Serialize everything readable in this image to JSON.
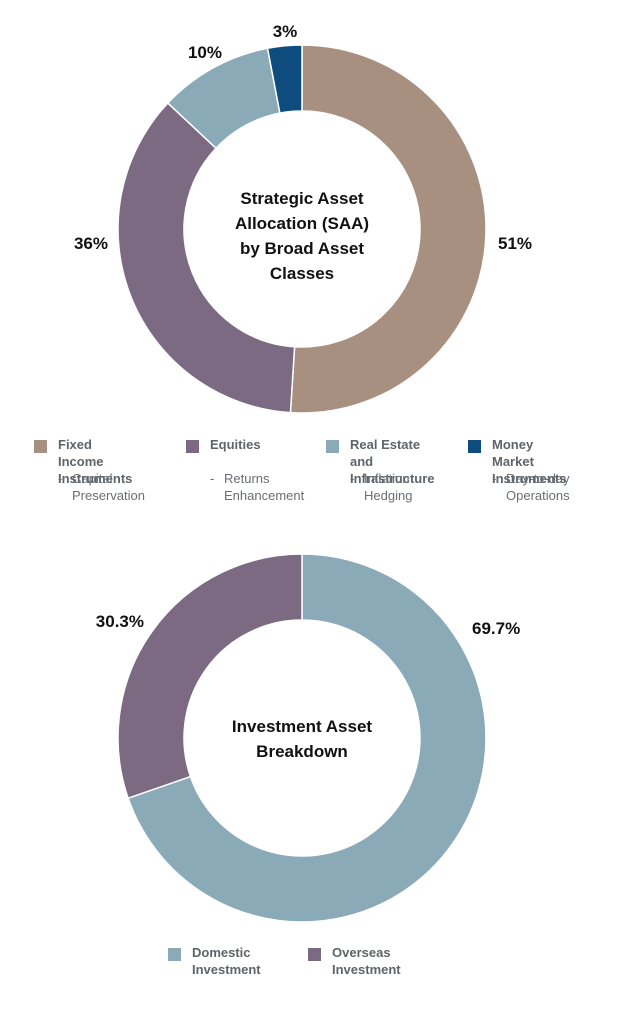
{
  "colors": {
    "fixed_income": "#a89080",
    "equities": "#7b6a82",
    "real_estate": "#8aaab7",
    "money_market": "#0e4c7d",
    "domestic": "#8aaab7",
    "overseas": "#7b6a82"
  },
  "chart_data": [
    {
      "type": "pie",
      "style": "donut",
      "title": "Strategic Asset Allocation (SAA) by Broad Asset Classes",
      "title_lines": [
        "Strategic Asset",
        "Allocation (SAA)",
        "by Broad Asset",
        "Classes"
      ],
      "slices": [
        {
          "label": "Fixed Income Instruments",
          "value": 51,
          "display": "51%",
          "color": "#a89080",
          "description": "Capital Preservation"
        },
        {
          "label": "Equities",
          "value": 36,
          "display": "36%",
          "color": "#7b6a82",
          "description": "Returns Enhancement"
        },
        {
          "label": "Real Estate and Infrastructure",
          "value": 10,
          "display": "10%",
          "color": "#8aaab7",
          "description": "Inflation Hedging"
        },
        {
          "label": "Money Market Instruments",
          "value": 3,
          "display": "3%",
          "color": "#0e4c7d",
          "description": "Day-to-day Operations"
        }
      ],
      "legend_position": "bottom"
    },
    {
      "type": "pie",
      "style": "donut",
      "title": "Investment Asset Breakdown",
      "title_lines": [
        "Investment Asset",
        "Breakdown"
      ],
      "slices": [
        {
          "label": "Domestic Investment",
          "value": 69.7,
          "display": "69.7%",
          "color": "#8aaab7"
        },
        {
          "label": "Overseas Investment",
          "value": 30.3,
          "display": "30.3%",
          "color": "#7b6a82"
        }
      ],
      "legend_position": "bottom"
    }
  ],
  "legend1": [
    {
      "label": "Fixed Income\nInstruments",
      "dash": "-",
      "desc": "Capital\nPreservation"
    },
    {
      "label": "Equities",
      "dash": "-",
      "desc": "Returns\nEnhancement"
    },
    {
      "label": "Real Estate and\nInfrastructure",
      "dash": "-",
      "desc": "Inflation\nHedging"
    },
    {
      "label": "Money Market\nInstruments",
      "dash": "-",
      "desc": "Day-to-day\nOperations"
    }
  ],
  "legend2": [
    {
      "label": "Domestic\nInvestment"
    },
    {
      "label": "Overseas\nInvestment"
    }
  ]
}
